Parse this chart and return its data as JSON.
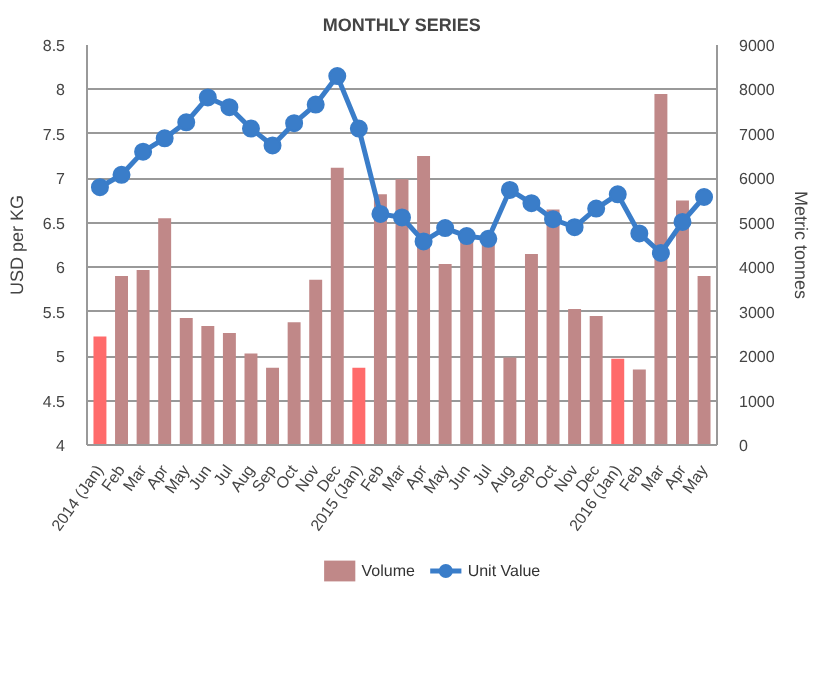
{
  "chart_data": {
    "type": "bar",
    "title": "MONTHLY SERIES",
    "ylabel": "USD per KG",
    "y2label": "Metric tonnes",
    "categories": [
      "2014 (Jan)",
      "Feb",
      "Mar",
      "Apr",
      "May",
      "Jun",
      "Jul",
      "Aug",
      "Sep",
      "Oct",
      "Nov",
      "Dec",
      "2015 (Jan)",
      "Feb",
      "Mar",
      "Apr",
      "May",
      "Jun",
      "Jul",
      "Aug",
      "Sep",
      "Oct",
      "Nov",
      "Dec",
      "2016 (Jan)",
      "Feb",
      "Mar",
      "Apr",
      "May"
    ],
    "series": [
      {
        "name": "Volume",
        "axis": "y2",
        "color": "#c08888",
        "colors": [
          "#ff6b6b",
          "#c08888",
          "#c08888",
          "#c08888",
          "#c08888",
          "#c08888",
          "#c08888",
          "#c08888",
          "#c08888",
          "#c08888",
          "#c08888",
          "#c08888",
          "#ff6b6b",
          "#c08888",
          "#c08888",
          "#c08888",
          "#c08888",
          "#c08888",
          "#c08888",
          "#c08888",
          "#c08888",
          "#c08888",
          "#c08888",
          "#c08888",
          "#ff6b6b",
          "#c08888",
          "#c08888",
          "#c08888",
          "#c08888"
        ],
        "values": [
          2440,
          3800,
          3940,
          5100,
          2860,
          2680,
          2520,
          2060,
          1740,
          2760,
          3720,
          6240,
          1740,
          5640,
          5980,
          6500,
          4070,
          4650,
          4500,
          1970,
          4300,
          5300,
          3060,
          2900,
          1940,
          1700,
          7900,
          5500,
          3800
        ]
      },
      {
        "name": "Unit Value",
        "type": "line",
        "color": "#3a7dc9",
        "values": [
          6.9,
          7.04,
          7.3,
          7.45,
          7.63,
          7.91,
          7.8,
          7.56,
          7.37,
          7.62,
          7.83,
          8.15,
          7.56,
          6.6,
          6.56,
          6.29,
          6.44,
          6.35,
          6.32,
          6.87,
          6.72,
          6.54,
          6.45,
          6.66,
          6.82,
          6.38,
          6.16,
          6.51,
          6.79
        ]
      }
    ],
    "ylim": [
      4,
      8.5
    ],
    "yticks": [
      4,
      4.5,
      5,
      5.5,
      6,
      6.5,
      7,
      7.5,
      8,
      8.5
    ],
    "y2lim": [
      0,
      9000
    ],
    "y2ticks": [
      0,
      1000,
      2000,
      3000,
      4000,
      5000,
      6000,
      7000,
      8000,
      9000
    ],
    "grid": "y",
    "legend": "bottom",
    "marker": "circle"
  }
}
